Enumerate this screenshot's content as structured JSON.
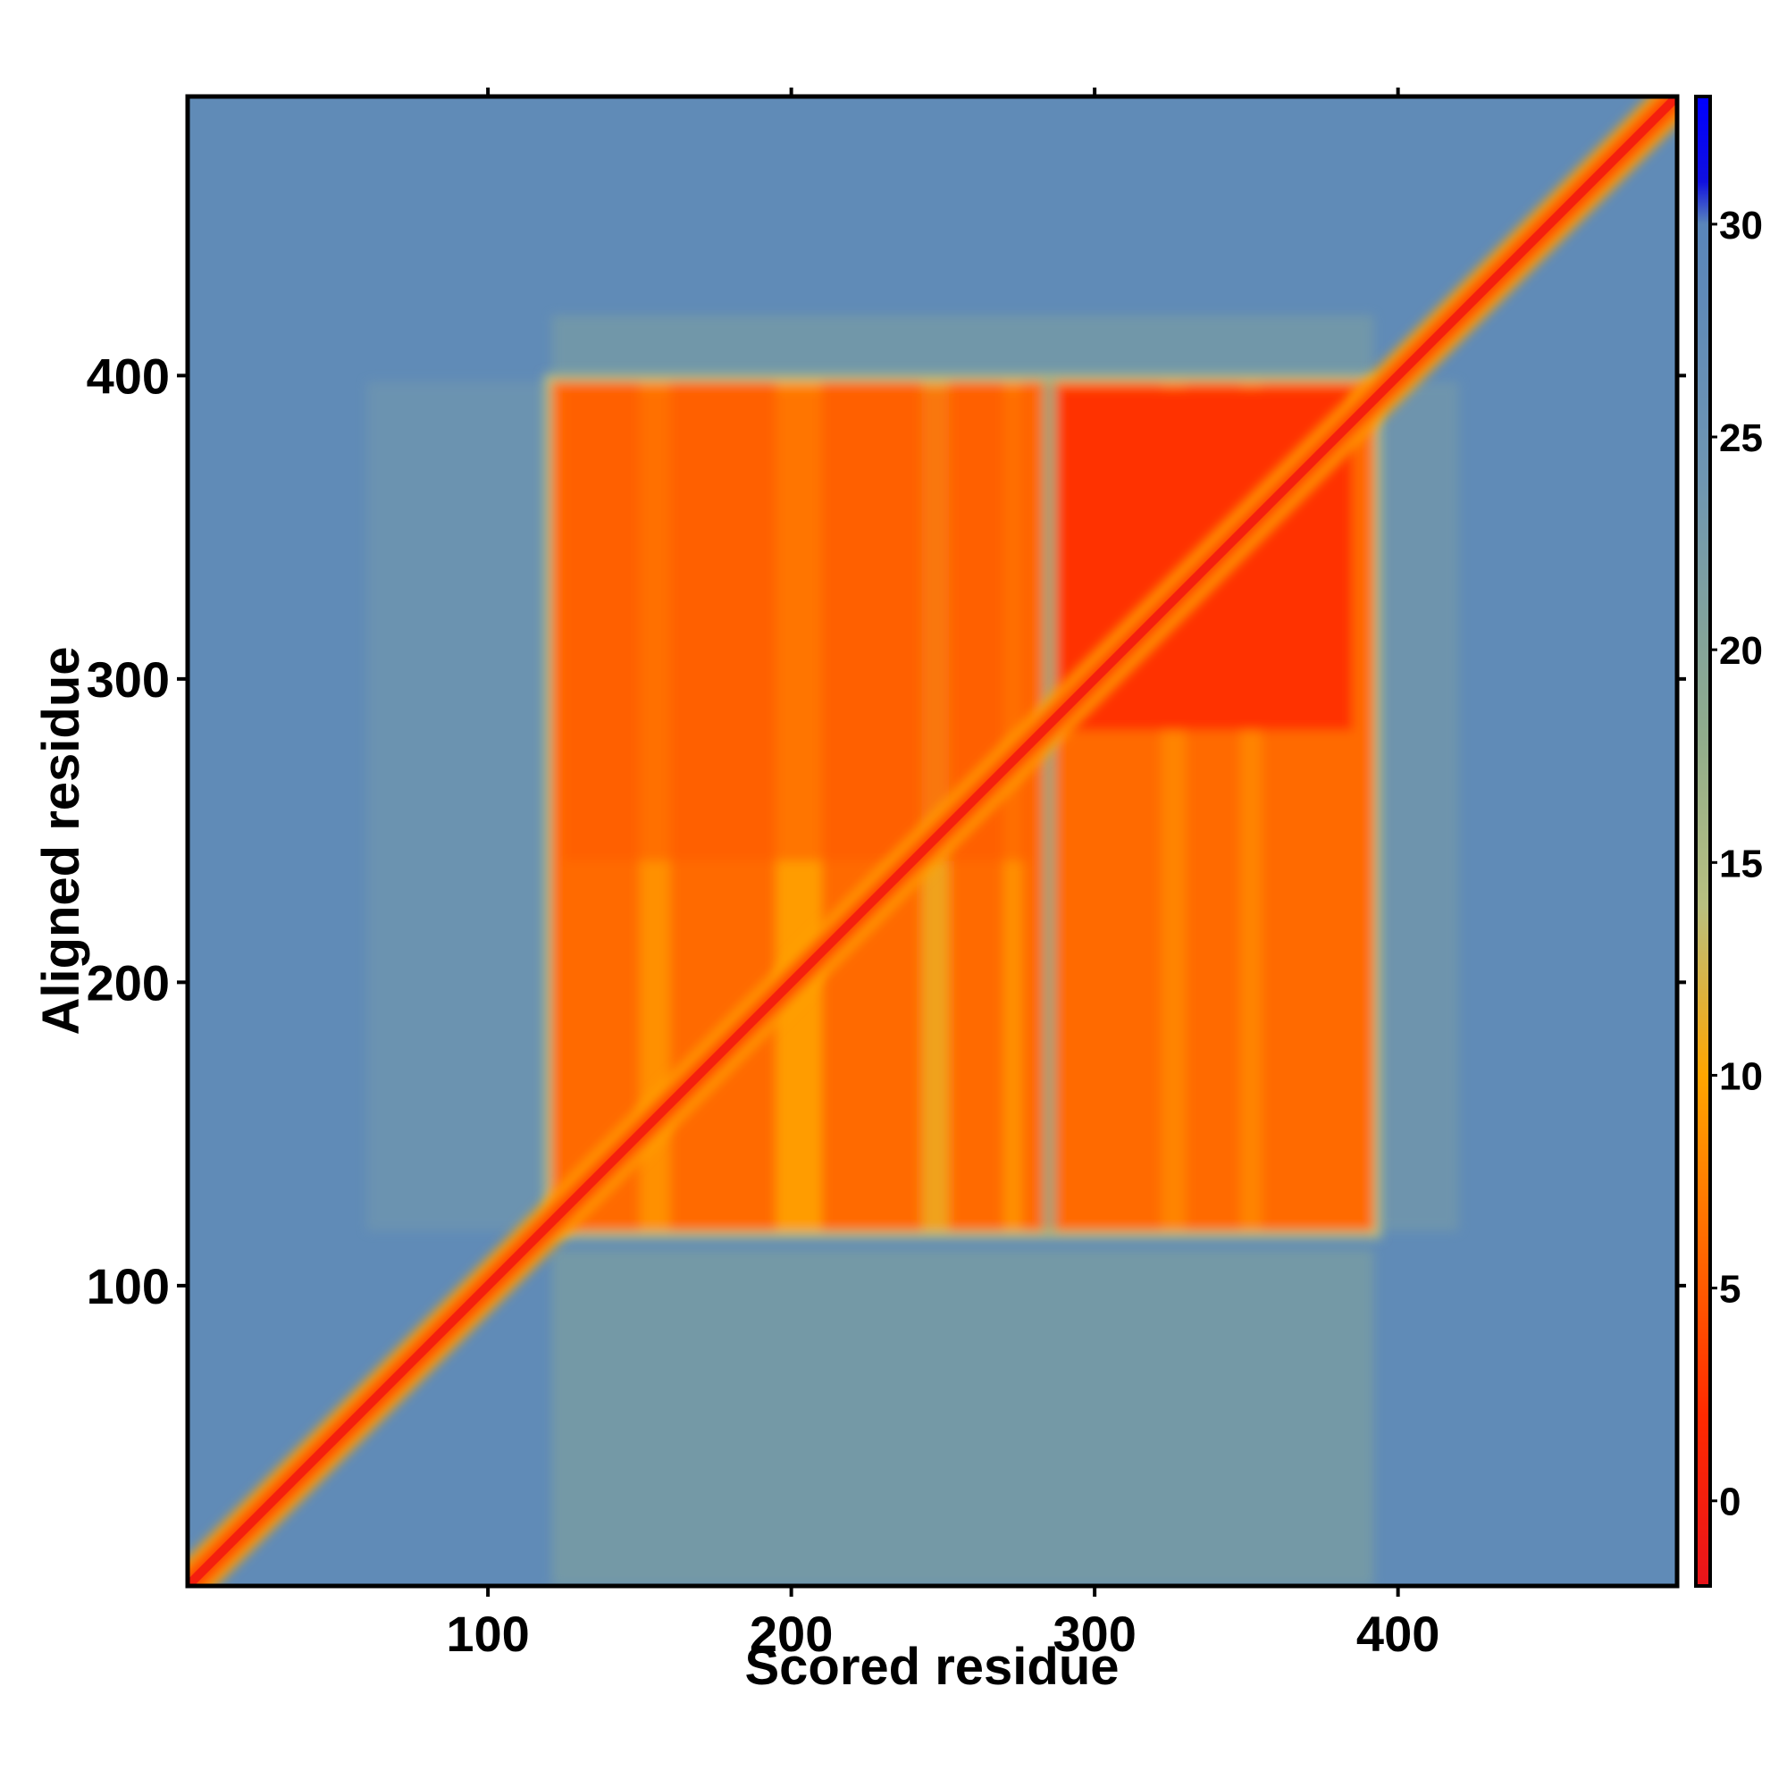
{
  "chart_data": {
    "type": "heatmap",
    "title": "",
    "xlabel": "Scored residue",
    "ylabel": "Aligned residue",
    "xlim": [
      1,
      492
    ],
    "ylim": [
      1,
      492
    ],
    "xticks": [
      100,
      200,
      300,
      400
    ],
    "yticks": [
      100,
      200,
      300,
      400
    ],
    "colorbar": {
      "range": [
        -2,
        33
      ],
      "ticks": [
        0,
        5,
        10,
        15,
        20,
        25,
        30
      ],
      "stops": [
        {
          "value": -2,
          "color": "#e8141b"
        },
        {
          "value": 2,
          "color": "#ff2a00"
        },
        {
          "value": 6,
          "color": "#ff6a00"
        },
        {
          "value": 10,
          "color": "#ffa500"
        },
        {
          "value": 14,
          "color": "#b8c080"
        },
        {
          "value": 18,
          "color": "#90ac8c"
        },
        {
          "value": 24,
          "color": "#6f96b2"
        },
        {
          "value": 30,
          "color": "#5985ba"
        },
        {
          "value": 31,
          "color": "#1010e0"
        },
        {
          "value": 33,
          "color": "#0000ff"
        }
      ]
    },
    "regions": {
      "background_value": 28,
      "diagonal_value": 0,
      "domain_block": {
        "x": [
          121,
          392
        ],
        "y": [
          118,
          398
        ],
        "value": 6
      },
      "subdomain_split": 283
    }
  }
}
